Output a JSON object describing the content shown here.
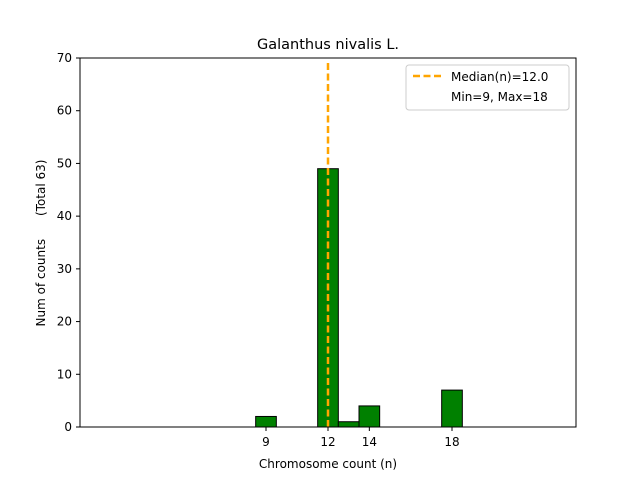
{
  "chart_data": {
    "type": "bar",
    "title": "Galanthus nivalis L.",
    "xlabel": "Chromosome count (n)",
    "ylabel": "Num of counts      (Total 63)",
    "xlim": [
      0,
      24
    ],
    "ylim": [
      0,
      70
    ],
    "x_ticks": [
      9,
      12,
      14,
      18
    ],
    "y_ticks": [
      0,
      10,
      20,
      30,
      40,
      50,
      60,
      70
    ],
    "bars": [
      {
        "x": 9,
        "value": 2
      },
      {
        "x": 11,
        "value": 0
      },
      {
        "x": 12,
        "value": 49
      },
      {
        "x": 13,
        "value": 1
      },
      {
        "x": 14,
        "value": 4
      },
      {
        "x": 15,
        "value": 0
      },
      {
        "x": 16,
        "value": 0
      },
      {
        "x": 17,
        "value": 0
      },
      {
        "x": 18,
        "value": 7
      },
      {
        "x": 19,
        "value": 0
      },
      {
        "x": 20,
        "value": 0
      },
      {
        "x": 21,
        "value": 0
      }
    ],
    "median_line": {
      "x": 12.0,
      "label": "Median(n)=12.0"
    },
    "legend": {
      "placement": "top-right",
      "entries": [
        "Median(n)=12.0",
        "Min=9, Max=18"
      ]
    },
    "colors": {
      "bar": "#008000",
      "bar_edge": "#000000",
      "median": "#FFA500"
    },
    "grid": false
  }
}
